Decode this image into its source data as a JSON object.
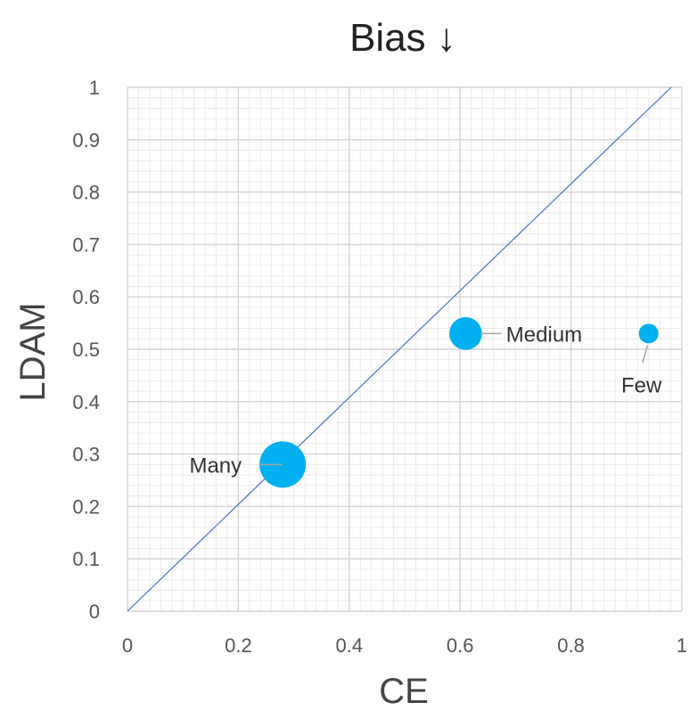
{
  "chart_data": {
    "type": "scatter",
    "title": "Bias ↓",
    "xlabel": "CE",
    "ylabel": "LDAM",
    "xlim": [
      0,
      1
    ],
    "ylim": [
      0,
      1
    ],
    "x_ticks": [
      "0",
      "0.2",
      "0.4",
      "0.6",
      "0.8",
      "1"
    ],
    "y_ticks": [
      "0",
      "0.1",
      "0.2",
      "0.3",
      "0.4",
      "0.5",
      "0.6",
      "0.7",
      "0.8",
      "0.9",
      "1"
    ],
    "grid": true,
    "diagonal_line": {
      "from": [
        0,
        0
      ],
      "to": [
        1,
        1
      ]
    },
    "points": [
      {
        "label": "Many",
        "x": 0.28,
        "y": 0.28,
        "size": 1.0
      },
      {
        "label": "Medium",
        "x": 0.61,
        "y": 0.53,
        "size": 0.5
      },
      {
        "label": "Few",
        "x": 0.94,
        "y": 0.53,
        "size": 0.18
      }
    ],
    "colors": {
      "points": "#00B0F0",
      "diagonal": "#4472C4",
      "grid_major": "#d4d4d4",
      "grid_minor": "#ececec",
      "leader": "#a6a6a6"
    }
  }
}
